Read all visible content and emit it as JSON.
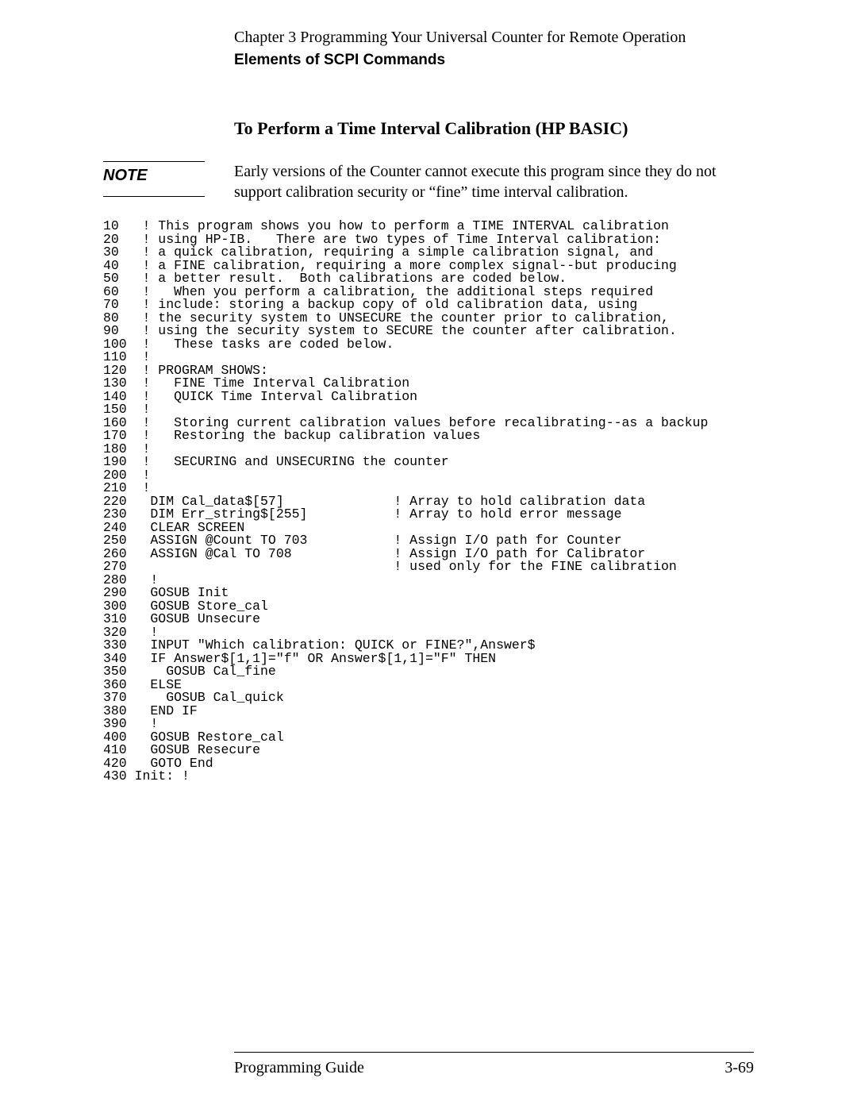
{
  "header": {
    "chapter_line": "Chapter 3  Programming Your Universal Counter for Remote Operation",
    "subheader": "Elements of SCPI Commands"
  },
  "section_title": "To Perform a Time Interval Calibration (HP BASIC)",
  "note": {
    "label": "NOTE",
    "text": "Early versions of the Counter cannot execute this program since they do not support calibration security or “fine” time interval calibration."
  },
  "code": "10   ! This program shows you how to perform a TIME INTERVAL calibration\n20   ! using HP-IB.   There are two types of Time Interval calibration:\n30   ! a quick calibration, requiring a simple calibration signal, and\n40   ! a FINE calibration, requiring a more complex signal--but producing\n50   ! a better result.  Both calibrations are coded below.\n60   !   When you perform a calibration, the additional steps required\n70   ! include: storing a backup copy of old calibration data, using\n80   ! the security system to UNSECURE the counter prior to calibration,\n90   ! using the security system to SECURE the counter after calibration.\n100  !   These tasks are coded below.\n110  !\n120  ! PROGRAM SHOWS:\n130  !   FINE Time Interval Calibration\n140  !   QUICK Time Interval Calibration\n150  !\n160  !   Storing current calibration values before recalibrating--as a backup\n170  !   Restoring the backup calibration values\n180  !\n190  !   SECURING and UNSECURING the counter\n200  !\n210  !\n220   DIM Cal_data$[57]              ! Array to hold calibration data\n230   DIM Err_string$[255]           ! Array to hold error message\n240   CLEAR SCREEN\n250   ASSIGN @Count TO 703           ! Assign I/O path for Counter\n260   ASSIGN @Cal TO 708             ! Assign I/O path for Calibrator\n270                                  ! used only for the FINE calibration\n280   !\n290   GOSUB Init\n300   GOSUB Store_cal\n310   GOSUB Unsecure\n320   !\n330   INPUT \"Which calibration: QUICK or FINE?\",Answer$\n340   IF Answer$[1,1]=\"f\" OR Answer$[1,1]=\"F\" THEN\n350     GOSUB Cal_fine\n360   ELSE\n370     GOSUB Cal_quick\n380   END IF\n390   !\n400   GOSUB Restore_cal\n410   GOSUB Resecure\n420   GOTO End\n430 Init: !",
  "footer": {
    "left": "Programming Guide",
    "right": "3-69"
  }
}
